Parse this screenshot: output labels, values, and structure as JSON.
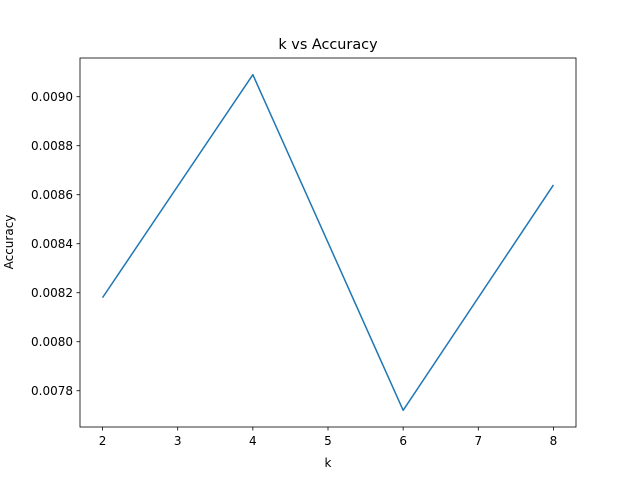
{
  "chart_data": {
    "type": "line",
    "title": "k vs Accuracy",
    "xlabel": "k",
    "ylabel": "Accuracy",
    "x": [
      2,
      4,
      6,
      8
    ],
    "series": [
      {
        "values": [
          0.00818,
          0.00909,
          0.00772,
          0.00864
        ],
        "color": "#1f77b4"
      }
    ],
    "xticks": [
      "2",
      "3",
      "4",
      "5",
      "6",
      "7",
      "8"
    ],
    "yticks": [
      "0.0078",
      "0.0080",
      "0.0082",
      "0.0084",
      "0.0086",
      "0.0088",
      "0.0090"
    ],
    "xlim": [
      1.7,
      8.3
    ],
    "ylim": [
      0.007652,
      0.009158
    ],
    "grid": false,
    "legend": "none"
  }
}
